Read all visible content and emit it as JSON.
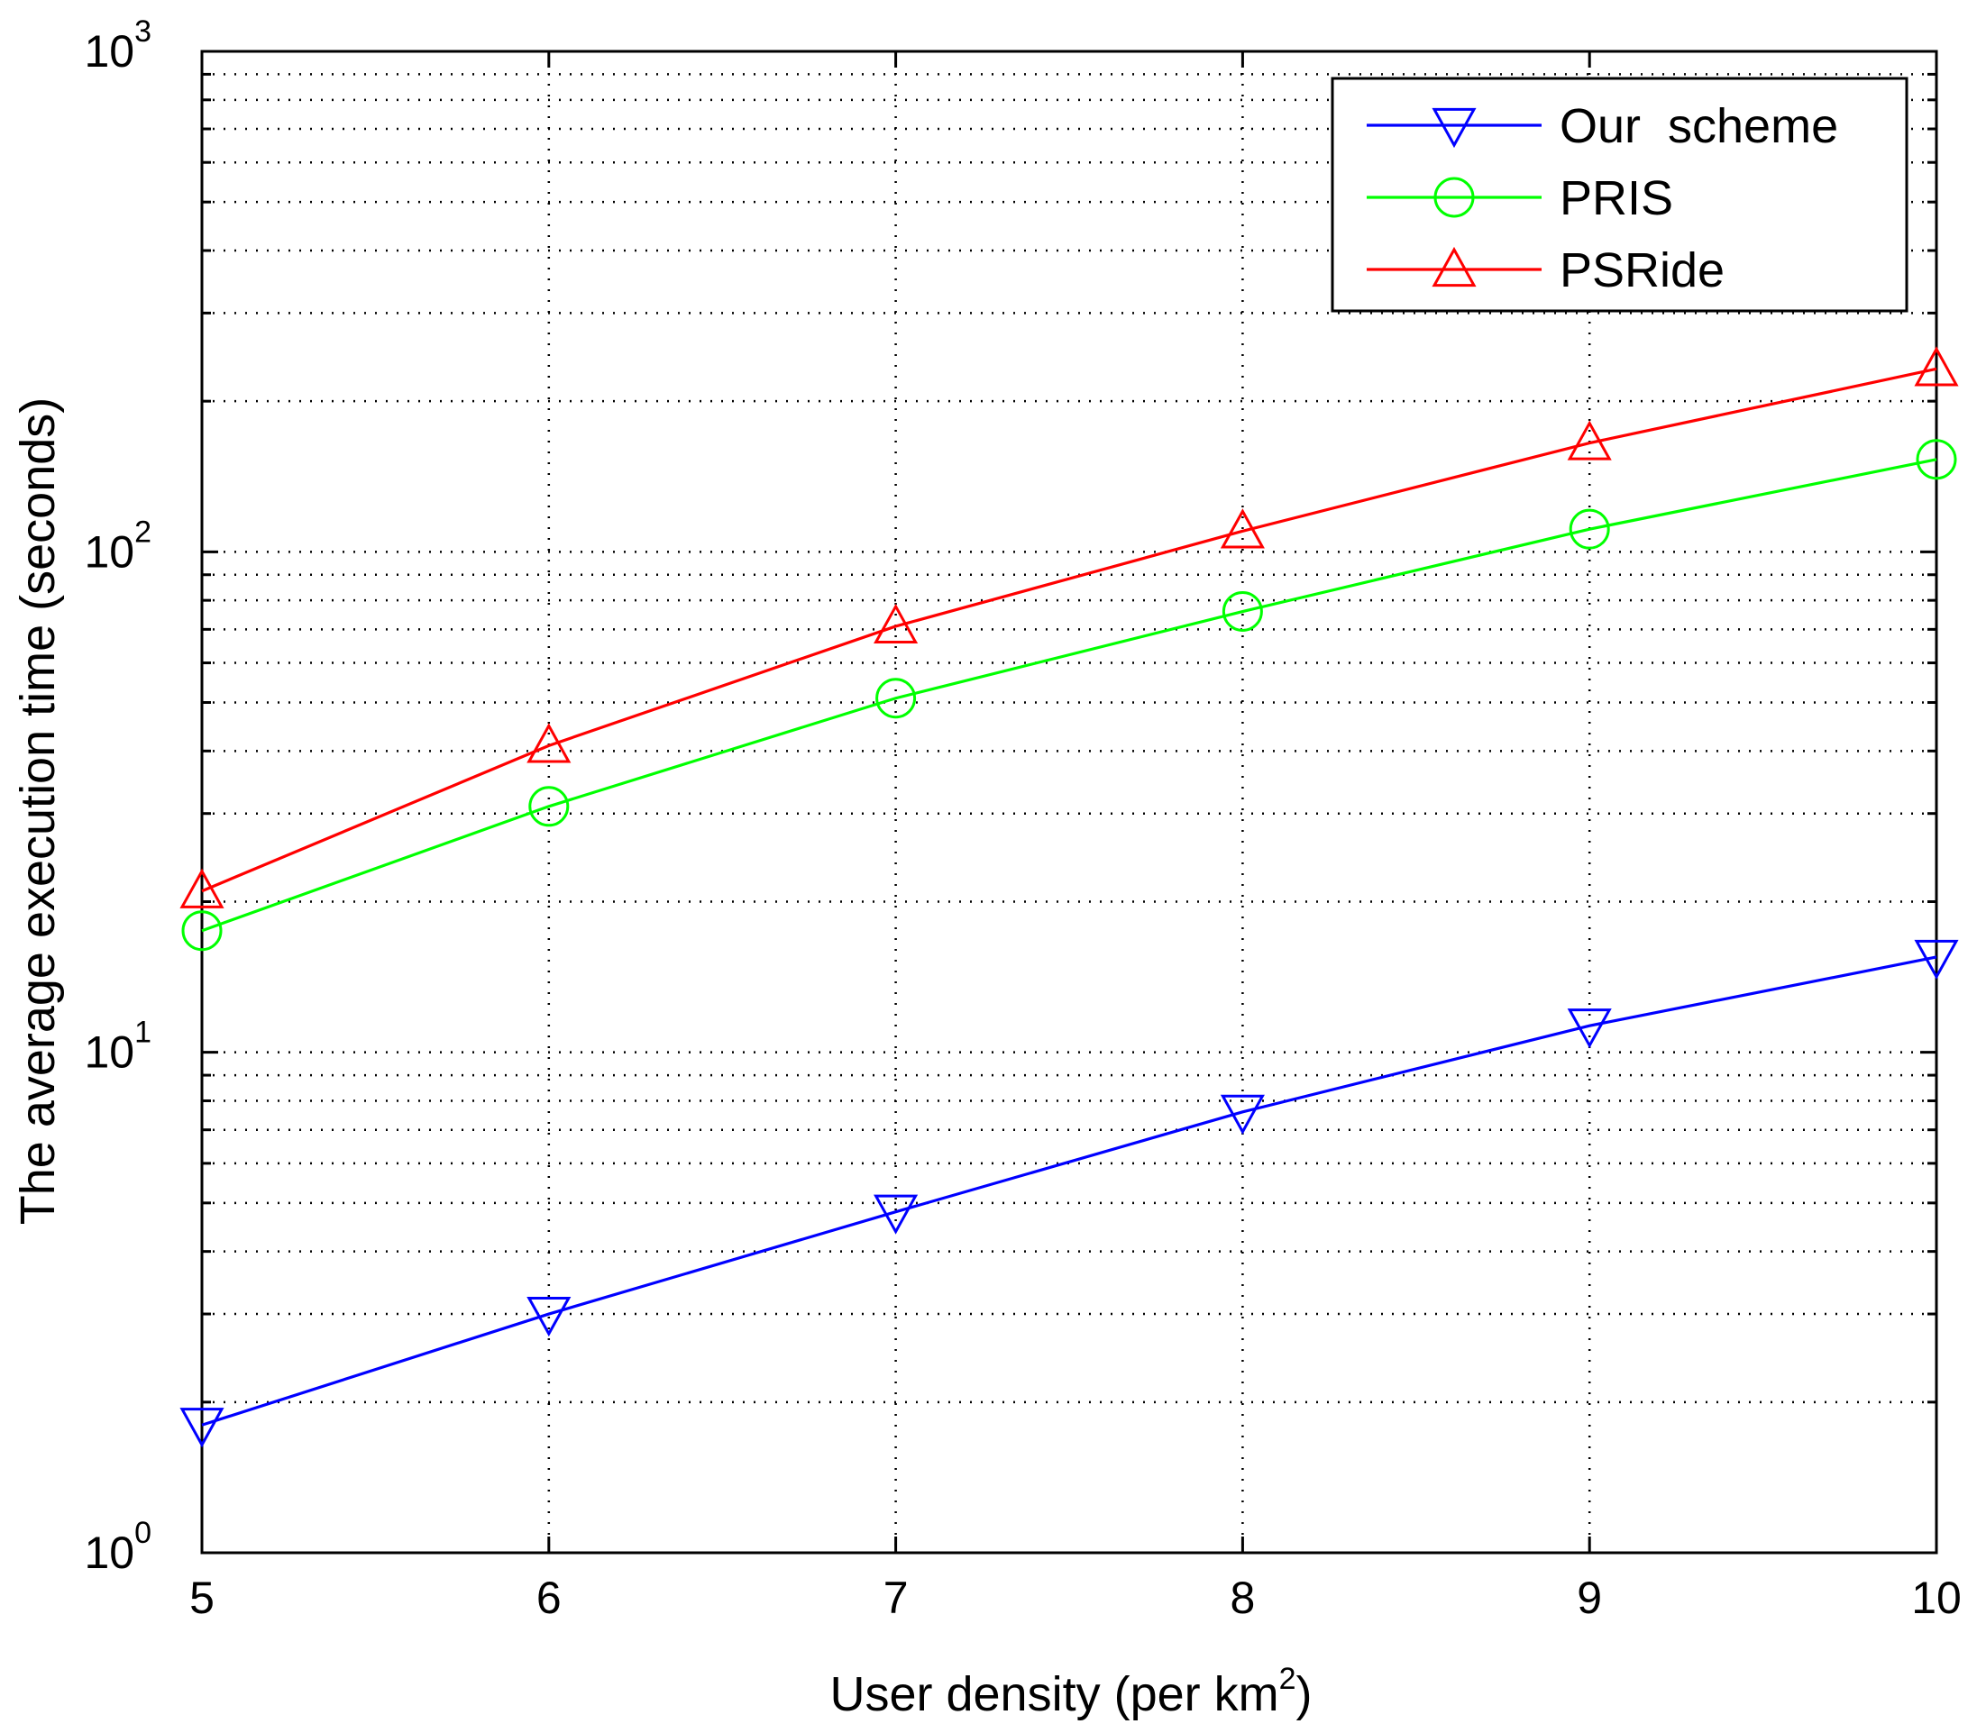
{
  "chart_data": {
    "type": "line",
    "title": "",
    "xlabel": "User density (per km",
    "xlabel_sup": "2",
    "xlabel_suffix": ")",
    "ylabel": "The average execution time (seconds)",
    "x": [
      5,
      6,
      7,
      8,
      9,
      10
    ],
    "xlim": [
      5,
      10
    ],
    "ylim": [
      1,
      1000
    ],
    "yscale": "log",
    "grid": true,
    "legend_position": "top-right",
    "x_tick_labels": [
      "5",
      "6",
      "7",
      "8",
      "9",
      "10"
    ],
    "y_ticks": [
      {
        "value": 1,
        "base": "10",
        "exp": "0"
      },
      {
        "value": 10,
        "base": "10",
        "exp": "1"
      },
      {
        "value": 100,
        "base": "10",
        "exp": "2"
      },
      {
        "value": 1000,
        "base": "10",
        "exp": "3"
      }
    ],
    "series": [
      {
        "name": "Our  scheme",
        "color": "#0000ff",
        "marker": "triangle-down",
        "values": [
          1.8,
          3.0,
          4.8,
          7.6,
          11.3,
          15.5
        ]
      },
      {
        "name": "PRIS",
        "color": "#00ff00",
        "marker": "circle",
        "values": [
          17.5,
          31,
          51,
          76,
          111,
          153
        ]
      },
      {
        "name": "PSRide",
        "color": "#ff0000",
        "marker": "triangle-up",
        "values": [
          21,
          41,
          71,
          110,
          165,
          232
        ]
      }
    ]
  }
}
